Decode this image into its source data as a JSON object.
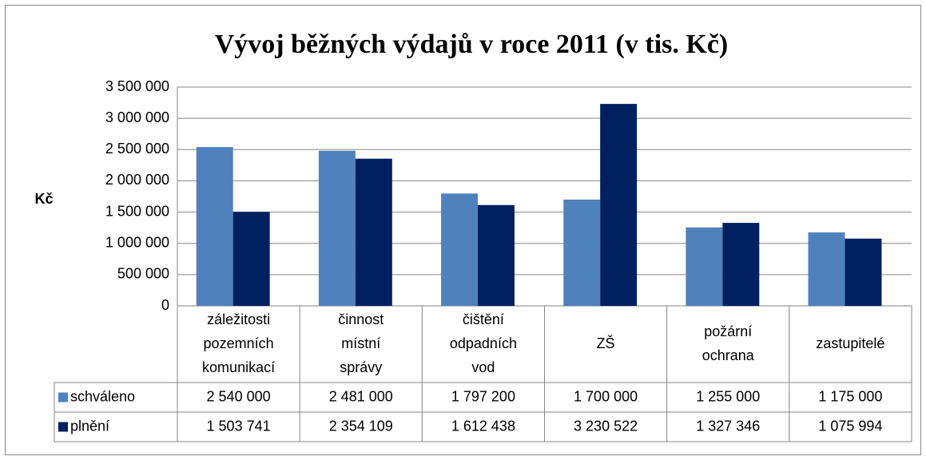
{
  "chart_data": {
    "type": "bar",
    "title": "Vývoj běžných výdajů v roce 2011 (v tis. Kč)",
    "y_label": "Kč",
    "categories": [
      "záležitosti pozemních komunikací",
      "činnost místní správy",
      "čištění odpadních vod",
      "ZŠ",
      "požární ochrana",
      "zastupitelé"
    ],
    "series": [
      {
        "name": "schváleno",
        "color": "#4f81bd",
        "values": [
          2540000,
          2481000,
          1797200,
          1700000,
          1255000,
          1175000
        ],
        "value_labels": [
          "2 540 000",
          "2 481 000",
          "1 797 200",
          "1 700 000",
          "1 255 000",
          "1 175 000"
        ]
      },
      {
        "name": "plnění",
        "color": "#002060",
        "values": [
          1503741,
          2354109,
          1612438,
          3230522,
          1327346,
          1075994
        ],
        "value_labels": [
          "1 503 741",
          "2 354 109",
          "1 612 438",
          "3 230 522",
          "1 327 346",
          "1 075 994"
        ]
      }
    ],
    "ylim": [
      0,
      3500000
    ],
    "yticks": [
      0,
      {
        "value": 500000,
        "label": "500 000"
      },
      {
        "value": 1000000,
        "label": "1 000 000"
      },
      {
        "value": 1500000,
        "label": "1 500 000"
      },
      {
        "value": 2000000,
        "label": "2 000 000"
      },
      {
        "value": 2500000,
        "label": "2 500 000"
      },
      {
        "value": 3000000,
        "label": "3 000 000"
      },
      {
        "value": 3500000,
        "label": "3 500 000"
      }
    ],
    "grid": true
  }
}
